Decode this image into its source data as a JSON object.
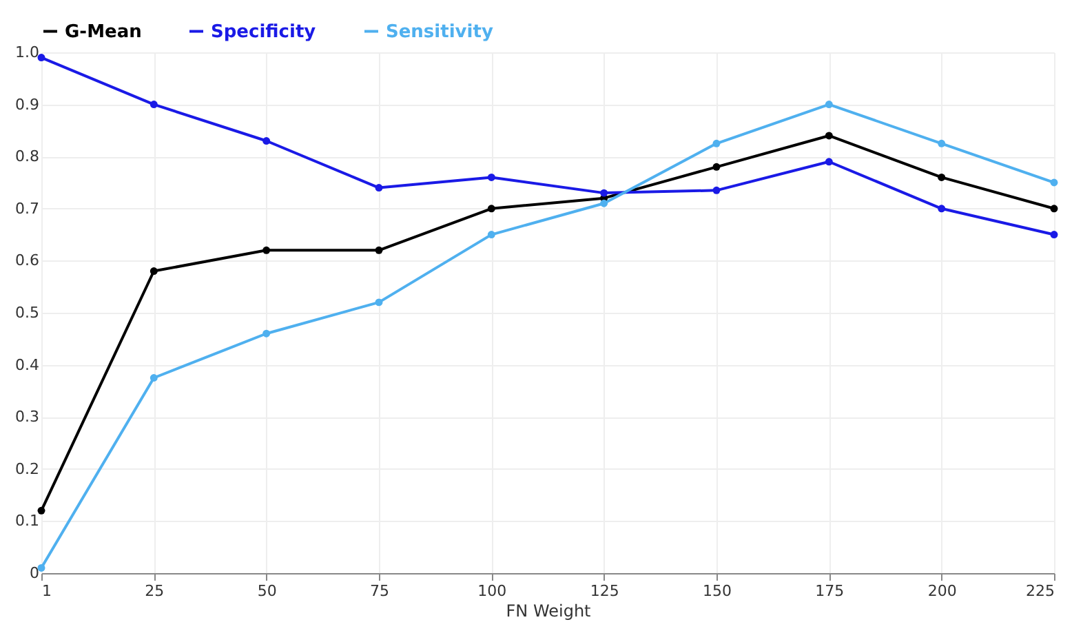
{
  "chart_data": {
    "type": "line",
    "xlabel": "FN Weight",
    "categories": [
      "1",
      "25",
      "50",
      "75",
      "100",
      "125",
      "150",
      "175",
      "200",
      "225"
    ],
    "series": [
      {
        "name": "G-Mean",
        "color": "#000000",
        "values": [
          0.12,
          0.58,
          0.62,
          0.62,
          0.7,
          0.72,
          0.78,
          0.84,
          0.76,
          0.7
        ]
      },
      {
        "name": "Specificity",
        "color": "#1a1ae6",
        "values": [
          0.99,
          0.9,
          0.83,
          0.74,
          0.76,
          0.73,
          0.735,
          0.79,
          0.7,
          0.65
        ]
      },
      {
        "name": "Sensitivity",
        "color": "#4fb0ef",
        "values": [
          0.01,
          0.375,
          0.46,
          0.52,
          0.65,
          0.71,
          0.825,
          0.9,
          0.825,
          0.75
        ]
      }
    ],
    "ylim": [
      0,
      1
    ],
    "yticks": [
      0,
      0.1,
      0.2,
      0.3,
      0.4,
      0.5,
      0.6,
      0.7,
      0.8,
      0.9,
      {
        "value": 1,
        "label": "1.0"
      }
    ],
    "grid": true,
    "legend": "top",
    "marker": "circle",
    "line_style": "solid"
  }
}
